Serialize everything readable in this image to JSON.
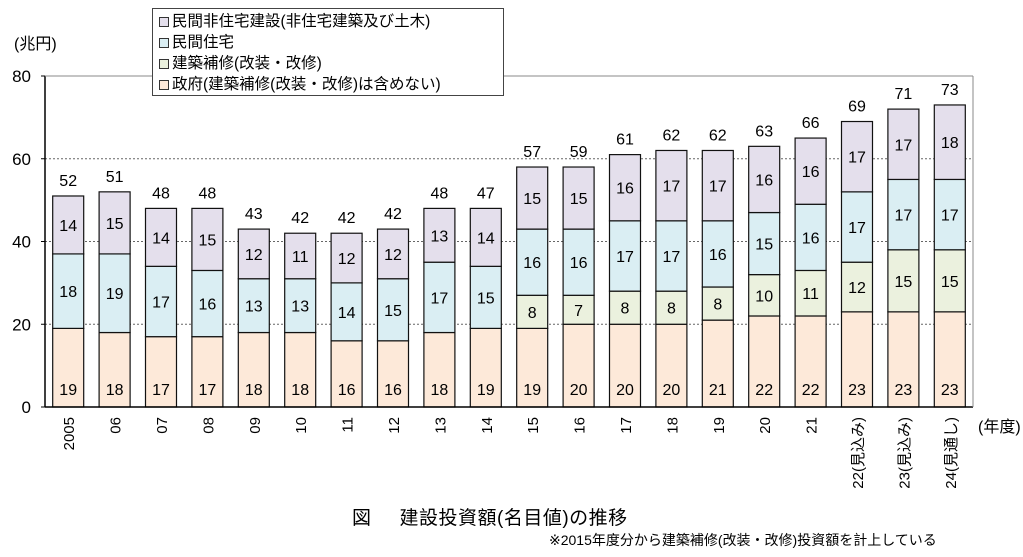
{
  "chart_data": {
    "type": "bar",
    "stacked": true,
    "title": "図　建設投資額(名目値)の推移",
    "note": "※2015年度分から建築補修(改装・改修)投資額を計上している",
    "xlabel": "(年度)",
    "ylabel": "(兆円)",
    "ylim": [
      0,
      80
    ],
    "yticks": [
      0,
      20,
      40,
      60,
      80
    ],
    "grid": true,
    "legend_position": "top-left inside",
    "categories": [
      "2005",
      "06",
      "07",
      "08",
      "09",
      "10",
      "11",
      "12",
      "13",
      "14",
      "15",
      "16",
      "17",
      "18",
      "19",
      "20",
      "21",
      "22(見込み)",
      "23(見込み)",
      "24(見通し)"
    ],
    "series": [
      {
        "name": "政府(建築補修(改装・改修)は含めない)",
        "color": "#fde9d9",
        "values": [
          19,
          18,
          17,
          17,
          18,
          18,
          16,
          16,
          18,
          19,
          19,
          20,
          20,
          20,
          21,
          22,
          22,
          23,
          23,
          23
        ]
      },
      {
        "name": "建築補修(改装・改修)",
        "color": "#ebf1de",
        "values": [
          null,
          null,
          null,
          null,
          null,
          null,
          null,
          null,
          null,
          null,
          8,
          7,
          8,
          8,
          8,
          10,
          11,
          12,
          15,
          15
        ]
      },
      {
        "name": "民間住宅",
        "color": "#daeef3",
        "values": [
          18,
          19,
          17,
          16,
          13,
          13,
          14,
          15,
          17,
          15,
          16,
          16,
          17,
          17,
          16,
          15,
          16,
          17,
          17,
          17
        ]
      },
      {
        "name": "民間非住宅建設(非住宅建築及び土木)",
        "color": "#e4dfec",
        "values": [
          14,
          15,
          14,
          15,
          12,
          11,
          12,
          12,
          13,
          14,
          15,
          15,
          16,
          17,
          17,
          16,
          16,
          17,
          17,
          18
        ]
      }
    ],
    "totals": [
      52,
      51,
      48,
      48,
      43,
      42,
      42,
      42,
      48,
      47,
      57,
      59,
      61,
      62,
      62,
      63,
      66,
      69,
      71,
      73
    ]
  },
  "legend": {
    "items": [
      {
        "label": "民間非住宅建設(非住宅建築及び土木)",
        "color": "#e4dfec"
      },
      {
        "label": "民間住宅",
        "color": "#daeef3"
      },
      {
        "label": "建築補修(改装・改修)",
        "color": "#ebf1de"
      },
      {
        "label": "政府(建築補修(改装・改修)は含めない)",
        "color": "#fde9d9"
      }
    ]
  },
  "axis": {
    "y_unit": "(兆円)",
    "x_unit": "(年度)"
  },
  "caption": {
    "fig": "図",
    "title": "建設投資額(名目値)の推移",
    "note": "※2015年度分から建築補修(改装・改修)投資額を計上している"
  }
}
